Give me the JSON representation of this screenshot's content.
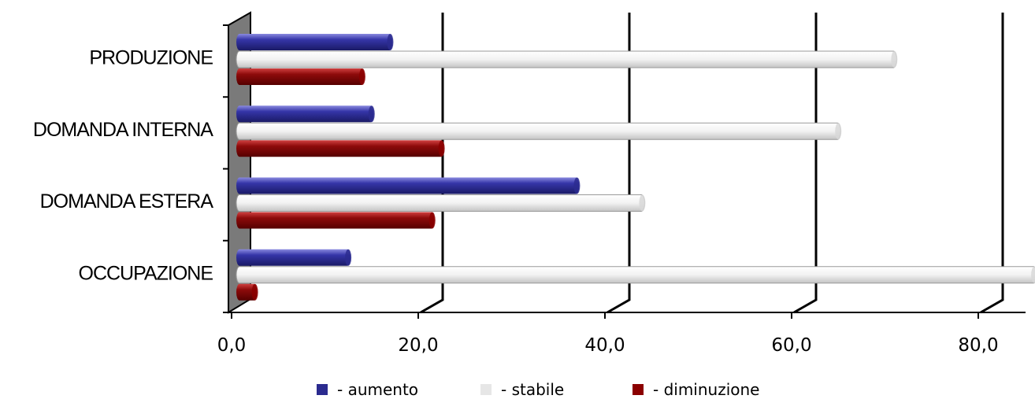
{
  "chart_data": {
    "type": "bar",
    "orientation": "horizontal",
    "categories": [
      "PRODUZIONE",
      "DOMANDA INTERNA",
      "DOMANDA ESTERA",
      "OCCUPAZIONE"
    ],
    "series": [
      {
        "name": "- aumento",
        "values": [
          17.0,
          15.0,
          37.0,
          12.5
        ],
        "color": "#2b2b8f"
      },
      {
        "name": "- stabile",
        "values": [
          71.0,
          65.0,
          44.0,
          86.0
        ],
        "color": "#e6e6e6"
      },
      {
        "name": "- diminuzione",
        "values": [
          14.0,
          22.5,
          21.5,
          2.5
        ],
        "color": "#8b0000"
      }
    ],
    "x_ticks": [
      "0,0",
      "20,0",
      "40,0",
      "60,0",
      "80,0"
    ],
    "xlim": [
      0,
      86
    ],
    "grid": true,
    "legend_position": "bottom"
  }
}
